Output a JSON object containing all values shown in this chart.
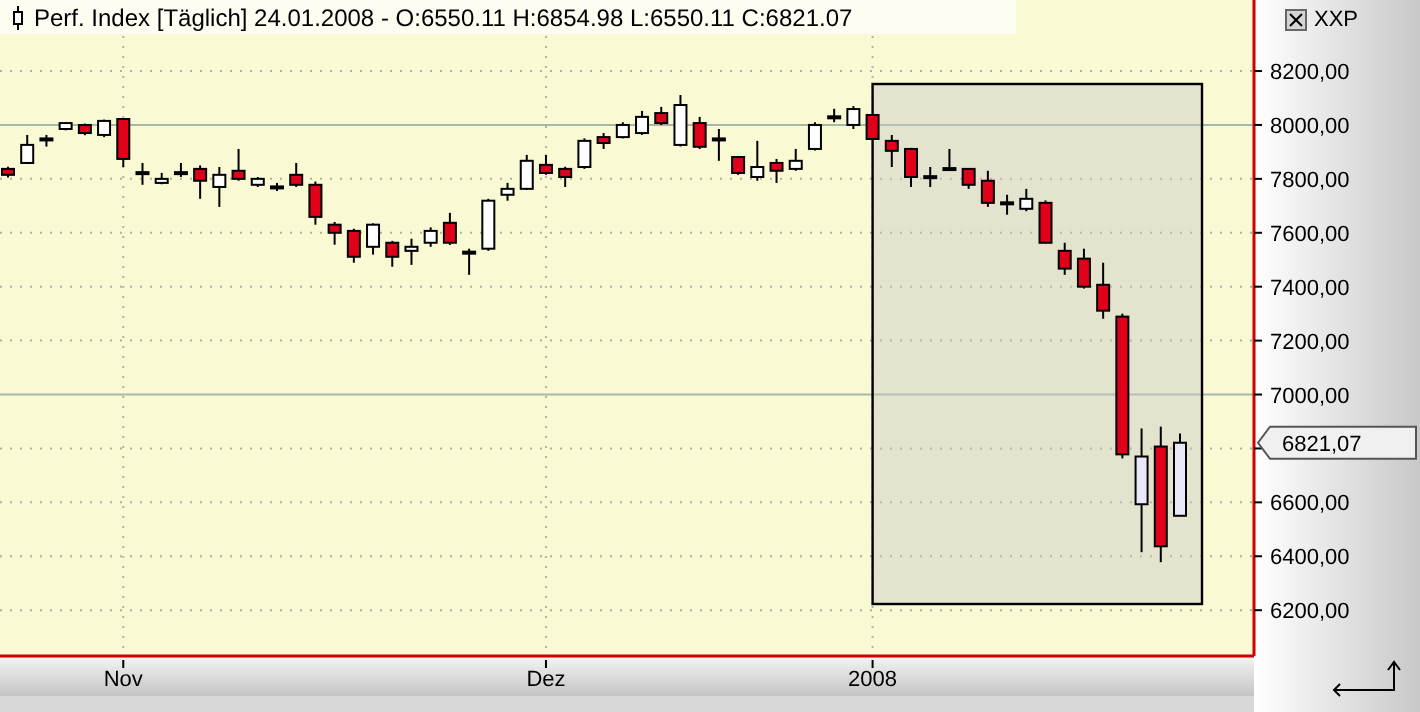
{
  "chart_data": {
    "type": "candlestick",
    "title": "Perf. Index [Täglich] 24.01.2008 - O:6550.11 H:6854.98 L:6550.11 C:6821.07",
    "ylabel": "XXP",
    "categories": [
      null,
      null,
      null,
      null,
      null,
      null,
      "Nov",
      null,
      null,
      null,
      null,
      null,
      null,
      null,
      null,
      null,
      null,
      null,
      null,
      null,
      null,
      null,
      null,
      null,
      null,
      null,
      null,
      null,
      "Dez",
      null,
      null,
      null,
      null,
      null,
      null,
      null,
      null,
      null,
      null,
      null,
      null,
      null,
      null,
      null,
      null,
      "2008",
      null,
      null,
      null,
      null,
      null,
      null,
      null,
      null,
      null,
      null,
      null,
      null,
      null,
      null,
      null,
      null
    ],
    "ohlc": [
      [
        7837,
        7845,
        7805,
        7815
      ],
      [
        7859,
        7963,
        7855,
        7926
      ],
      [
        7945,
        7963,
        7920,
        7950
      ],
      [
        7985,
        8010,
        7980,
        8007
      ],
      [
        8000,
        8005,
        7962,
        7970
      ],
      [
        7963,
        8020,
        7955,
        8015
      ],
      [
        8022,
        8025,
        7844,
        7874
      ],
      [
        7825,
        7859,
        7778,
        7820
      ],
      [
        7785,
        7822,
        7780,
        7800
      ],
      [
        7825,
        7859,
        7807,
        7822
      ],
      [
        7837,
        7850,
        7726,
        7793
      ],
      [
        7770,
        7844,
        7696,
        7815
      ],
      [
        7830,
        7911,
        7793,
        7800
      ],
      [
        7778,
        7807,
        7770,
        7800
      ],
      [
        7772,
        7785,
        7755,
        7768
      ],
      [
        7815,
        7859,
        7770,
        7778
      ],
      [
        7778,
        7790,
        7630,
        7659
      ],
      [
        7630,
        7640,
        7556,
        7600
      ],
      [
        7607,
        7615,
        7489,
        7511
      ],
      [
        7548,
        7635,
        7519,
        7630
      ],
      [
        7563,
        7570,
        7474,
        7511
      ],
      [
        7533,
        7578,
        7481,
        7548
      ],
      [
        7563,
        7620,
        7548,
        7607
      ],
      [
        7637,
        7674,
        7555,
        7563
      ],
      [
        7525,
        7541,
        7444,
        7530
      ],
      [
        7541,
        7726,
        7533,
        7719
      ],
      [
        7741,
        7785,
        7719,
        7763
      ],
      [
        7763,
        7889,
        7760,
        7867
      ],
      [
        7852,
        7889,
        7815,
        7822
      ],
      [
        7837,
        7845,
        7770,
        7807
      ],
      [
        7844,
        7950,
        7837,
        7941
      ],
      [
        7955,
        7970,
        7911,
        7933
      ],
      [
        7955,
        8010,
        7950,
        8000
      ],
      [
        7970,
        8052,
        7963,
        8030
      ],
      [
        8044,
        8067,
        8000,
        8007
      ],
      [
        7926,
        8111,
        7920,
        8074
      ],
      [
        8007,
        8030,
        7911,
        7919
      ],
      [
        7950,
        7985,
        7867,
        7945
      ],
      [
        7881,
        7885,
        7815,
        7822
      ],
      [
        7807,
        7941,
        7793,
        7844
      ],
      [
        7859,
        7874,
        7785,
        7830
      ],
      [
        7837,
        7911,
        7830,
        7867
      ],
      [
        7911,
        8010,
        7905,
        8000
      ],
      [
        8028,
        8060,
        8010,
        8032
      ],
      [
        8000,
        8070,
        7985,
        8059
      ],
      [
        8037,
        8040,
        7945,
        7948
      ],
      [
        7941,
        7963,
        7844,
        7904
      ],
      [
        7911,
        7915,
        7770,
        7807
      ],
      [
        7810,
        7844,
        7770,
        7805
      ],
      [
        7840,
        7911,
        7830,
        7835
      ],
      [
        7837,
        7840,
        7763,
        7778
      ],
      [
        7793,
        7830,
        7696,
        7711
      ],
      [
        7713,
        7741,
        7667,
        7709
      ],
      [
        7689,
        7763,
        7680,
        7726
      ],
      [
        7711,
        7720,
        7560,
        7563
      ],
      [
        7533,
        7563,
        7444,
        7467
      ],
      [
        7504,
        7541,
        7393,
        7400
      ],
      [
        7407,
        7489,
        7281,
        7311
      ],
      [
        7289,
        7300,
        6763,
        6778
      ],
      [
        6593,
        6874,
        6415,
        6770
      ],
      [
        6807,
        6881,
        6378,
        6437
      ],
      [
        6550.11,
        6854.98,
        6550.11,
        6821.07
      ]
    ],
    "colors": [
      "#e0001a",
      "#ffffff",
      "#ffffff",
      "#ffffff",
      "#e0001a",
      "#ffffff",
      "#e0001a",
      "#e0001a",
      "#ffffff",
      "#e0001a",
      "#e0001a",
      "#ffffff",
      "#e0001a",
      "#ffffff",
      "#e0001a",
      "#e0001a",
      "#e0001a",
      "#e0001a",
      "#e0001a",
      "#ffffff",
      "#e0001a",
      "#ffffff",
      "#ffffff",
      "#e0001a",
      "#ffffff",
      "#ffffff",
      "#ffffff",
      "#ffffff",
      "#e0001a",
      "#e0001a",
      "#ffffff",
      "#e0001a",
      "#ffffff",
      "#ffffff",
      "#e0001a",
      "#ffffff",
      "#e0001a",
      "#e0001a",
      "#e0001a",
      "#ffffff",
      "#e0001a",
      "#ffffff",
      "#ffffff",
      "#ffffff",
      "#ffffff",
      "#e0001a",
      "#e0001a",
      "#e0001a",
      "#e0001a",
      "#e0001a",
      "#e0001a",
      "#e0001a",
      "#e0001a",
      "#ffffff",
      "#e0001a",
      "#e0001a",
      "#e0001a",
      "#e0001a",
      "#e0001a",
      "#e8e8f8",
      "#e0001a",
      "#e8e8f8"
    ],
    "ylim": [
      6030,
      8330
    ],
    "yticks": [
      {
        "value": 6200,
        "label": "6200,00"
      },
      {
        "value": 6400,
        "label": "6400,00"
      },
      {
        "value": 6600,
        "label": "6600,00"
      },
      {
        "value": 6800,
        "label": null
      },
      {
        "value": 7000,
        "label": "7000,00"
      },
      {
        "value": 7200,
        "label": "7200,00"
      },
      {
        "value": 7400,
        "label": "7400,00"
      },
      {
        "value": 7600,
        "label": "7600,00"
      },
      {
        "value": 7800,
        "label": "7800,00"
      },
      {
        "value": 8000,
        "label": "8000,00"
      },
      {
        "value": 8200,
        "label": "8200,00"
      }
    ],
    "annotations": [
      "6821,07"
    ],
    "grid": true
  }
}
